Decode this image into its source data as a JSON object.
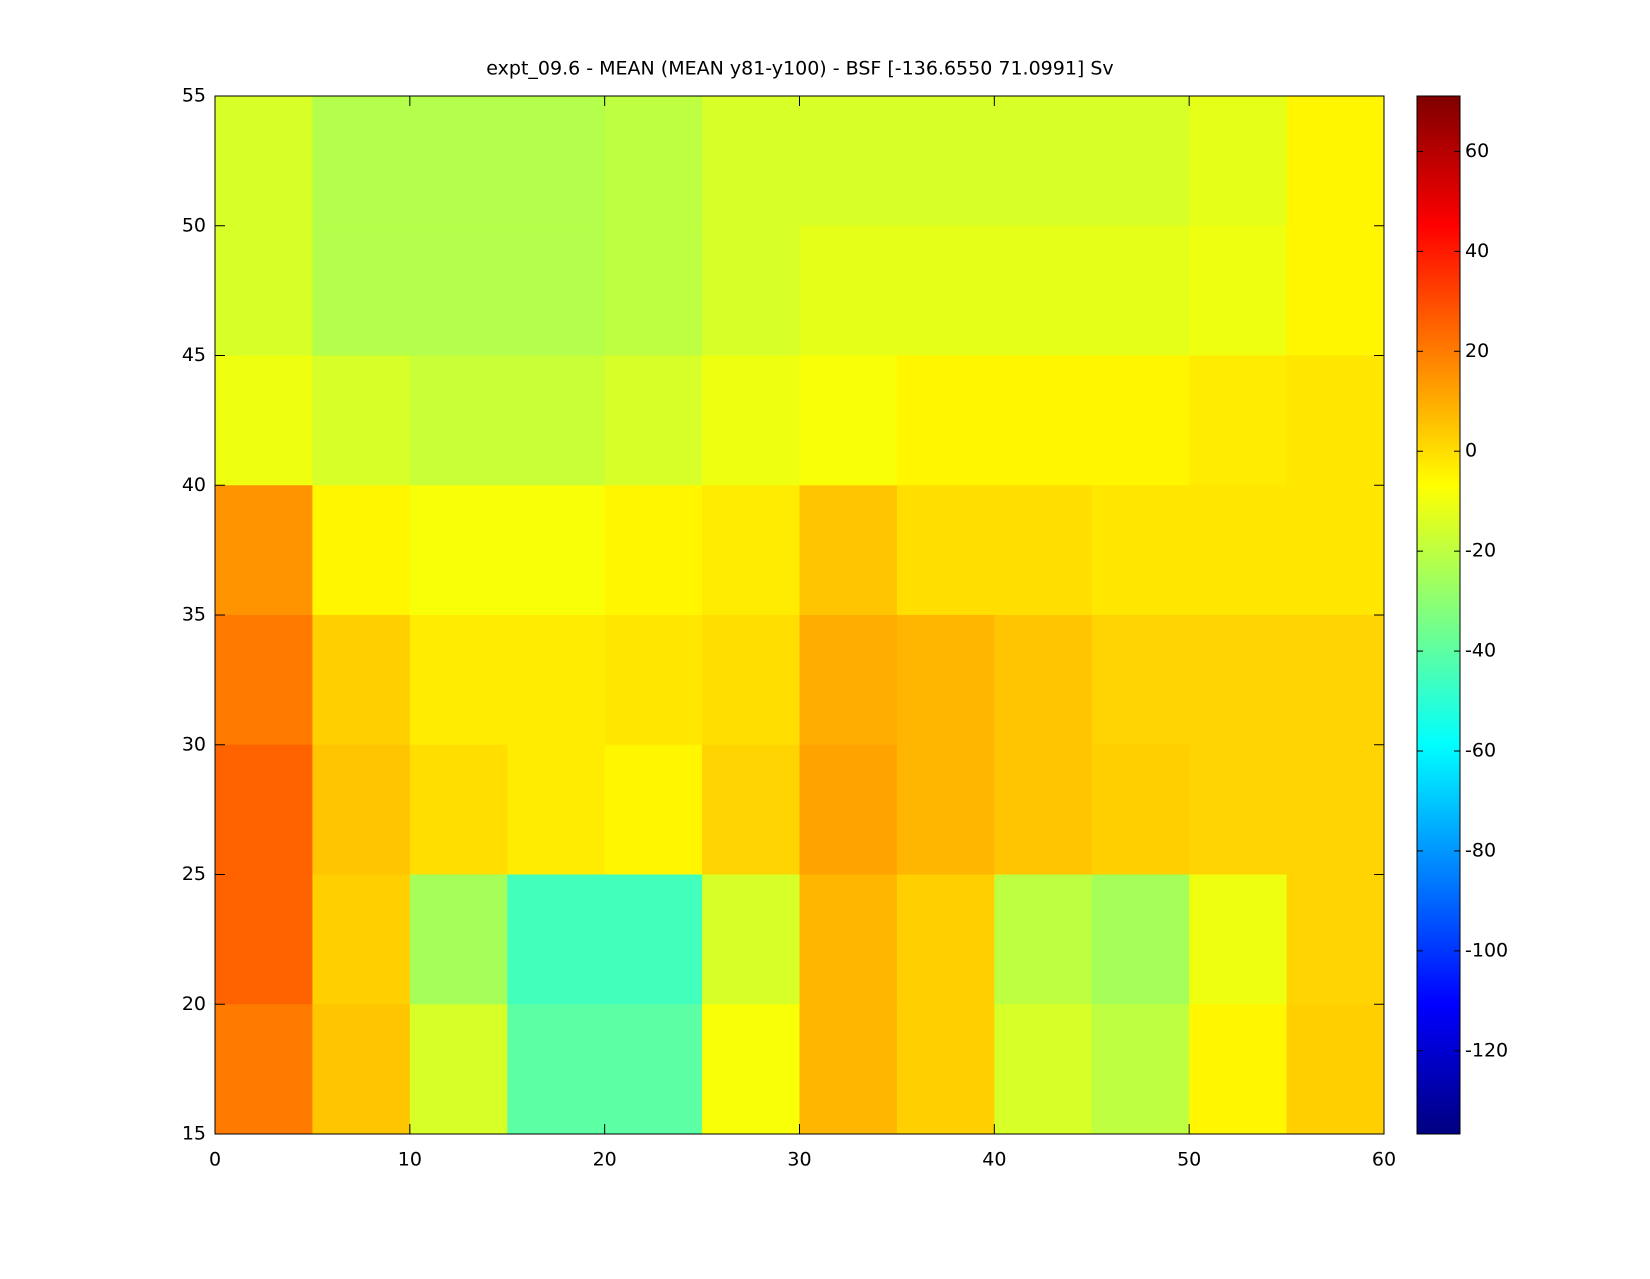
{
  "chart_data": {
    "type": "heatmap",
    "title": "expt_09.6 - MEAN (MEAN y81-y100) - BSF [-136.6550 71.0991] Sv",
    "x": [
      2.5,
      7.5,
      12.5,
      17.5,
      22.5,
      27.5,
      32.5,
      37.5,
      42.5,
      47.5,
      52.5,
      57.5
    ],
    "y": [
      52.5,
      47.5,
      42.5,
      37.5,
      32.5,
      27.5,
      22.5,
      17.5
    ],
    "z": [
      [
        -15,
        -22,
        -22,
        -22,
        -20,
        -15,
        -15,
        -15,
        -15,
        -15,
        -12,
        -5
      ],
      [
        -15,
        -22,
        -22,
        -22,
        -20,
        -15,
        -12,
        -12,
        -12,
        -12,
        -10,
        -5
      ],
      [
        -10,
        -15,
        -18,
        -18,
        -15,
        -10,
        -8,
        -5,
        -5,
        -5,
        -3,
        -2
      ],
      [
        15,
        -5,
        -8,
        -8,
        -5,
        -3,
        5,
        0,
        0,
        -2,
        -2,
        -2
      ],
      [
        20,
        3,
        -3,
        -3,
        -2,
        0,
        10,
        8,
        5,
        2,
        2,
        2
      ],
      [
        25,
        5,
        0,
        -3,
        -5,
        2,
        12,
        8,
        5,
        3,
        2,
        2
      ],
      [
        25,
        3,
        -25,
        -45,
        -45,
        -15,
        8,
        3,
        -20,
        -25,
        -10,
        2
      ],
      [
        20,
        5,
        -15,
        -40,
        -40,
        -8,
        8,
        3,
        -15,
        -20,
        -5,
        3
      ]
    ],
    "xlim": [
      0,
      60
    ],
    "xticks": [
      0,
      10,
      20,
      30,
      40,
      50,
      60
    ],
    "ylim": [
      15,
      55
    ],
    "yticks": [
      15,
      20,
      25,
      30,
      35,
      40,
      45,
      50,
      55
    ],
    "clim": [
      -136.655,
      71.0991
    ],
    "cticks": [
      -120,
      -100,
      -80,
      -60,
      -40,
      -20,
      0,
      20,
      40,
      60
    ],
    "colormap": "jet"
  }
}
